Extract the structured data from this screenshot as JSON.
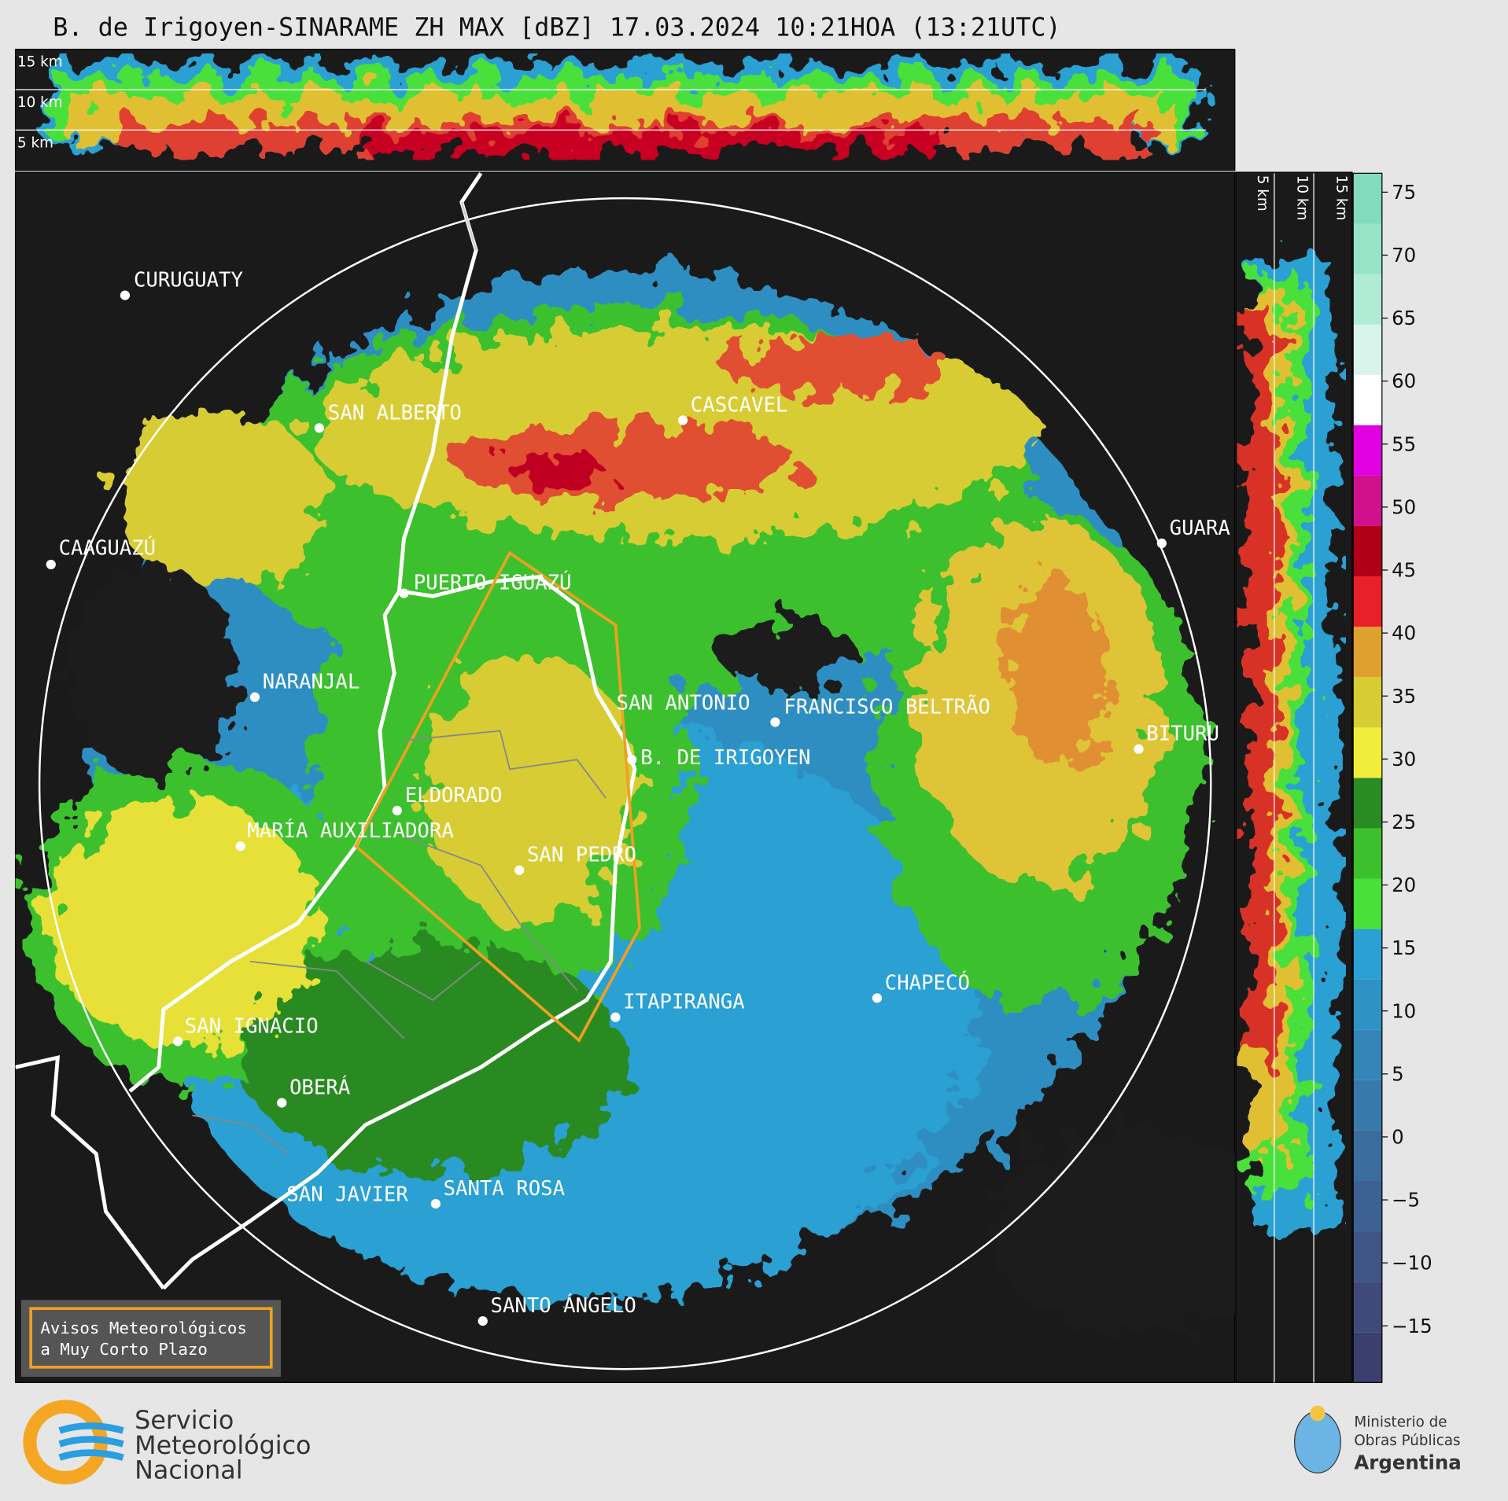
{
  "title": "B. de Irigoyen-SINARAME ZH MAX [dBZ] 17.03.2024 10:21HOA (13:21UTC)",
  "top_panel_labels": [
    "15 km",
    "10 km",
    "5 km"
  ],
  "side_panel_labels": [
    "5 km",
    "10 km",
    "15 km"
  ],
  "cities": [
    "CURUGUATY",
    "SAN ALBERTO",
    "CAAGUAZÚ",
    "PUERTO IGUAZÚ",
    "NARANJAL",
    "CASCAVEL",
    "GUARA",
    "SAN ANTONIO",
    "FRANCISCO BELTRÃO",
    "B. DE IRIGOYEN",
    "BITURU",
    "ELDORADO",
    "MARÍA AUXILIADORA",
    "SAN PEDRO",
    "ITAPIRANGA",
    "CHAPECÓ",
    "SAN IGNACIO",
    "OBERÁ",
    "SAN JAVIER",
    "SANTA ROSA",
    "SANTO ÁNGELO"
  ],
  "legend_box": [
    "Avisos Meteorológicos",
    "a Muy Corto Plazo"
  ],
  "colorbar": {
    "lim": [
      -19.5,
      76.5
    ],
    "ticks": [
      {
        "value": -15,
        "label": "−15"
      },
      {
        "value": -10,
        "label": "−10"
      },
      {
        "value": -5,
        "label": "−5"
      },
      0,
      5,
      10,
      15,
      20,
      25,
      30,
      35,
      40,
      45,
      50,
      55,
      60,
      65,
      70,
      75
    ],
    "colors": [
      "#3b3f6e",
      "#3f4a7a",
      "#3e5586",
      "#3c6192",
      "#3a6d9e",
      "#3879ab",
      "#3585b8",
      "#2f92c5",
      "#2aa0d3",
      "#49e03a",
      "#3cc02e",
      "#2a8a24",
      "#f0ee3a",
      "#d8cc34",
      "#e0a030",
      "#e8202a",
      "#b00018",
      "#d0108c",
      "#e000e0",
      "#ffffff",
      "#d8f4ea",
      "#b0ecd4",
      "#98e4c8",
      "#80dcbc"
    ]
  },
  "footer_left": [
    "Servicio",
    "Meteorológico",
    "Nacional"
  ],
  "footer_right": [
    "Ministerio de",
    "Obras Públicas",
    "Argentina"
  ]
}
